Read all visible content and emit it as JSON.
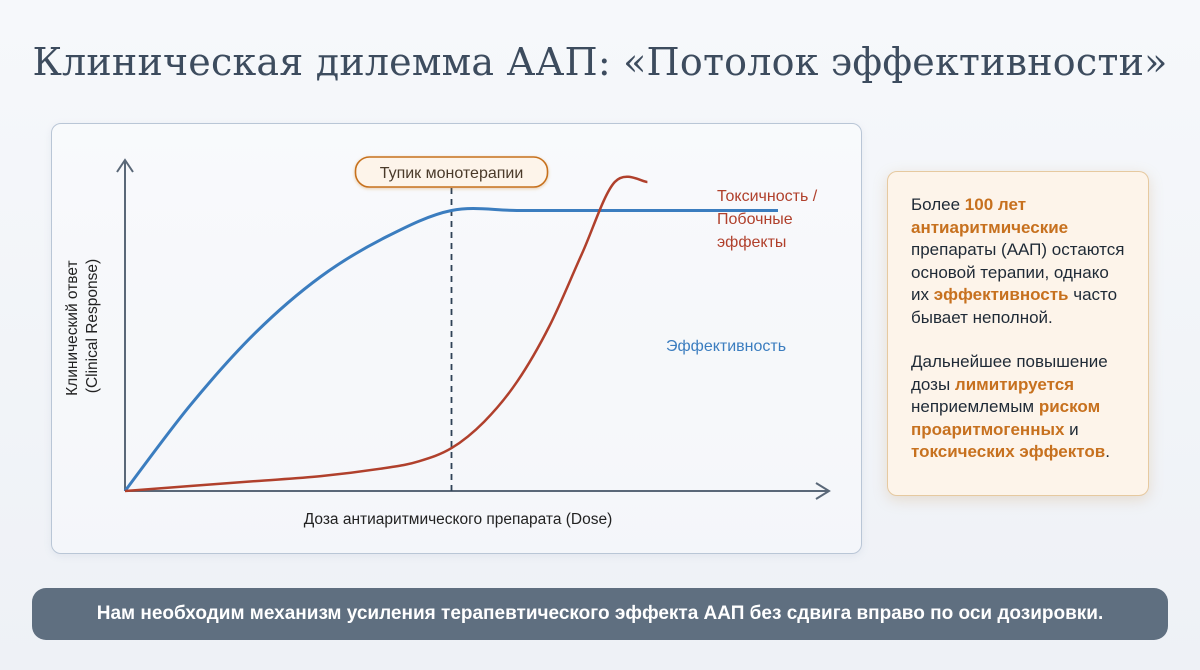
{
  "title": "Клиническая дилемма ААП: «Потолок эффективности»",
  "chart_data": {
    "type": "line",
    "xlabel": "Доза антиаритмического препарата (Dose)",
    "ylabel_line1": "Клинический ответ",
    "ylabel_line2": "(Clinical Response)",
    "xlim": [
      0,
      10
    ],
    "ylim": [
      0,
      10
    ],
    "series": [
      {
        "name": "Эффективность",
        "color": "#3b7dbf",
        "x": [
          0,
          1,
          2,
          3,
          4,
          5,
          6,
          7,
          8,
          9,
          10
        ],
        "y": [
          0,
          2.6,
          4.8,
          6.5,
          7.7,
          8.5,
          8.5,
          8.5,
          8.5,
          8.5,
          8.5
        ]
      },
      {
        "name_lines": [
          "Токсичность /",
          "Побочные",
          "эффекты"
        ],
        "color": "#b0402c",
        "x": [
          0,
          1,
          2,
          3,
          4,
          4.5,
          5,
          5.5,
          6,
          6.5,
          7,
          7.5,
          8
        ],
        "y": [
          0,
          0.15,
          0.3,
          0.45,
          0.7,
          0.9,
          1.3,
          2.1,
          3.3,
          5.0,
          7.2,
          10,
          13.5
        ]
      }
    ],
    "annotation": {
      "label": "Тупик монотерапии",
      "x": 5,
      "color": "#c7711f"
    }
  },
  "info": {
    "p1_a": "Более ",
    "p1_b": "100 лет антиаритмические",
    "p1_c": " препараты (ААП) остаются основой терапии, однако их ",
    "p1_d": "эффективность",
    "p1_e": " часто бывает неполной.",
    "p2_a": "Дальнейшее повышение дозы ",
    "p2_b": "лимитируется",
    "p2_c": " неприемлемым ",
    "p2_d": "риском проаритмогенных",
    "p2_e": " и ",
    "p2_f": "токсических эффектов",
    "p2_g": "."
  },
  "banner": "Нам необходим механизм усиления терапевтического эффекта ААП без сдвига вправо по оси дозировки."
}
